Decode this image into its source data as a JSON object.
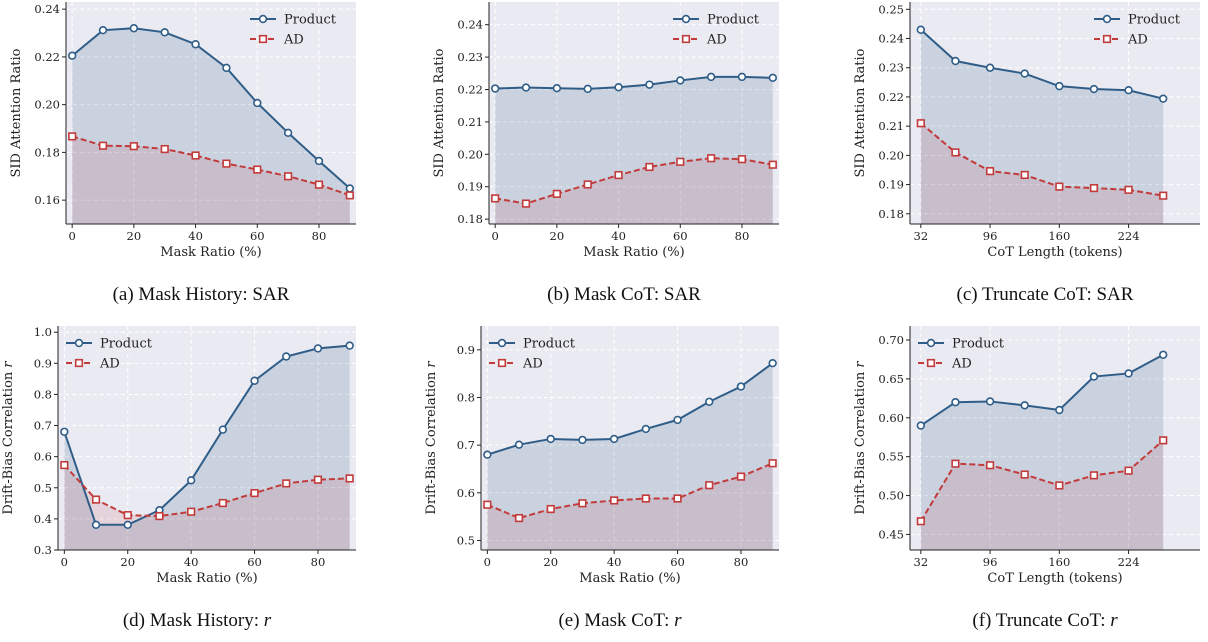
{
  "colors": {
    "product": "#2f5d87",
    "ad": "#c23b3b",
    "panel_bg": "#eaeaf2",
    "grid": "#ffffff"
  },
  "chart_data": [
    {
      "type": "line",
      "caption": "(a) Mask History: SAR",
      "xlabel": "Mask Ratio (%)",
      "ylabel": "SID Attention Ratio",
      "xlim": [
        -2,
        92
      ],
      "ylim": [
        0.15,
        0.243
      ],
      "xticks": [
        0,
        20,
        40,
        60,
        80
      ],
      "xtick_labels": [
        "0",
        "20",
        "40",
        "60",
        "80"
      ],
      "yticks": [
        0.16,
        0.18,
        0.2,
        0.22,
        0.24
      ],
      "ytick_labels": [
        "0.16",
        "0.18",
        "0.20",
        "0.22",
        "0.24"
      ],
      "legend": "top-right",
      "grid": true,
      "x": [
        0,
        10,
        20,
        30,
        40,
        50,
        60,
        70,
        80,
        90
      ],
      "series": [
        {
          "name": "Product",
          "values": [
            0.2205,
            0.2312,
            0.232,
            0.2303,
            0.2253,
            0.2154,
            0.2007,
            0.1882,
            0.1764,
            0.1649
          ]
        },
        {
          "name": "AD",
          "values": [
            0.1867,
            0.1828,
            0.1826,
            0.1814,
            0.1787,
            0.1753,
            0.1728,
            0.17,
            0.1665,
            0.162
          ]
        }
      ]
    },
    {
      "type": "line",
      "caption": "(b) Mask CoT: SAR",
      "xlabel": "Mask Ratio (%)",
      "ylabel": "SID Attention Ratio",
      "xlim": [
        -2,
        92
      ],
      "ylim": [
        0.1785,
        0.247
      ],
      "xticks": [
        0,
        20,
        40,
        60,
        80
      ],
      "xtick_labels": [
        "0",
        "20",
        "40",
        "60",
        "80"
      ],
      "yticks": [
        0.18,
        0.19,
        0.2,
        0.21,
        0.22,
        0.23,
        0.24
      ],
      "ytick_labels": [
        "0.18",
        "0.19",
        "0.20",
        "0.21",
        "0.22",
        "0.23",
        "0.24"
      ],
      "legend": "top-right",
      "grid": true,
      "x": [
        0,
        10,
        20,
        30,
        40,
        50,
        60,
        70,
        80,
        90
      ],
      "series": [
        {
          "name": "Product",
          "values": [
            0.2203,
            0.2206,
            0.2204,
            0.2202,
            0.2207,
            0.2215,
            0.2228,
            0.2239,
            0.2239,
            0.2236
          ]
        },
        {
          "name": "AD",
          "values": [
            0.1864,
            0.1848,
            0.1878,
            0.1907,
            0.1936,
            0.1961,
            0.1977,
            0.1988,
            0.1985,
            0.1968
          ]
        }
      ]
    },
    {
      "type": "line",
      "caption": "(c) Truncate CoT: SAR",
      "xlabel": "CoT Length (tokens)",
      "ylabel": "SID Attention Ratio",
      "xlim": [
        22,
        290
      ],
      "ylim": [
        0.1765,
        0.2525
      ],
      "xticks": [
        32,
        96,
        160,
        224
      ],
      "xtick_labels": [
        "32",
        "96",
        "160",
        "224"
      ],
      "yticks": [
        0.18,
        0.19,
        0.2,
        0.21,
        0.22,
        0.23,
        0.24,
        0.25
      ],
      "ytick_labels": [
        "0.18",
        "0.19",
        "0.20",
        "0.21",
        "0.22",
        "0.23",
        "0.24",
        "0.25"
      ],
      "legend": "top-right",
      "grid": true,
      "x": [
        32,
        64,
        96,
        128,
        160,
        192,
        224,
        256
      ],
      "series": [
        {
          "name": "Product",
          "values": [
            0.243,
            0.2323,
            0.23,
            0.228,
            0.2237,
            0.2227,
            0.2223,
            0.2194
          ]
        },
        {
          "name": "AD",
          "values": [
            0.211,
            0.201,
            0.1946,
            0.1933,
            0.1893,
            0.1888,
            0.1882,
            0.1862
          ]
        }
      ]
    },
    {
      "type": "line",
      "caption": "(d) Mask History: r",
      "xlabel": "Mask Ratio (%)",
      "ylabel": "Drift-Bias Correlation r",
      "xlim": [
        -2,
        92
      ],
      "ylim": [
        0.3,
        1.02
      ],
      "xticks": [
        0,
        20,
        40,
        60,
        80
      ],
      "xtick_labels": [
        "0",
        "20",
        "40",
        "60",
        "80"
      ],
      "yticks": [
        0.3,
        0.4,
        0.5,
        0.6,
        0.7,
        0.8,
        0.9,
        1.0
      ],
      "ytick_labels": [
        "0.3",
        "0.4",
        "0.5",
        "0.6",
        "0.7",
        "0.8",
        "0.9",
        "1.0"
      ],
      "legend": "top-left",
      "grid": true,
      "x": [
        0,
        10,
        20,
        30,
        40,
        50,
        60,
        70,
        80,
        90
      ],
      "series": [
        {
          "name": "Product",
          "values": [
            0.68,
            0.381,
            0.381,
            0.428,
            0.524,
            0.687,
            0.844,
            0.922,
            0.948,
            0.957
          ]
        },
        {
          "name": "AD",
          "values": [
            0.573,
            0.462,
            0.412,
            0.409,
            0.423,
            0.451,
            0.483,
            0.514,
            0.526,
            0.53
          ]
        }
      ]
    },
    {
      "type": "line",
      "caption": "(e) Mask CoT: r",
      "xlabel": "Mask Ratio (%)",
      "ylabel": "Drift-Bias Correlation r",
      "xlim": [
        -2,
        92
      ],
      "ylim": [
        0.48,
        0.95
      ],
      "xticks": [
        0,
        20,
        40,
        60,
        80
      ],
      "xtick_labels": [
        "0",
        "20",
        "40",
        "60",
        "80"
      ],
      "yticks": [
        0.5,
        0.6,
        0.7,
        0.8,
        0.9
      ],
      "ytick_labels": [
        "0.5",
        "0.6",
        "0.7",
        "0.8",
        "0.9"
      ],
      "legend": "top-left",
      "grid": true,
      "x": [
        0,
        10,
        20,
        30,
        40,
        50,
        60,
        70,
        80,
        90
      ],
      "series": [
        {
          "name": "Product",
          "values": [
            0.68,
            0.701,
            0.713,
            0.711,
            0.713,
            0.734,
            0.753,
            0.791,
            0.823,
            0.872
          ]
        },
        {
          "name": "AD",
          "values": [
            0.575,
            0.547,
            0.566,
            0.578,
            0.584,
            0.588,
            0.588,
            0.616,
            0.634,
            0.662
          ]
        }
      ]
    },
    {
      "type": "line",
      "caption": "(f) Truncate CoT: r",
      "xlabel": "CoT Length (tokens)",
      "ylabel": "Drift-Bias Correlation r",
      "xlim": [
        22,
        290
      ],
      "ylim": [
        0.43,
        0.718
      ],
      "xticks": [
        32,
        96,
        160,
        224
      ],
      "xtick_labels": [
        "32",
        "96",
        "160",
        "224"
      ],
      "yticks": [
        0.45,
        0.5,
        0.55,
        0.6,
        0.65,
        0.7
      ],
      "ytick_labels": [
        "0.45",
        "0.50",
        "0.55",
        "0.60",
        "0.65",
        "0.70"
      ],
      "legend": "top-left",
      "grid": true,
      "x": [
        32,
        64,
        96,
        128,
        160,
        192,
        224,
        256
      ],
      "series": [
        {
          "name": "Product",
          "values": [
            0.59,
            0.62,
            0.621,
            0.616,
            0.61,
            0.653,
            0.657,
            0.681
          ]
        },
        {
          "name": "AD",
          "values": [
            0.467,
            0.541,
            0.539,
            0.527,
            0.513,
            0.526,
            0.532,
            0.571
          ]
        }
      ]
    }
  ]
}
